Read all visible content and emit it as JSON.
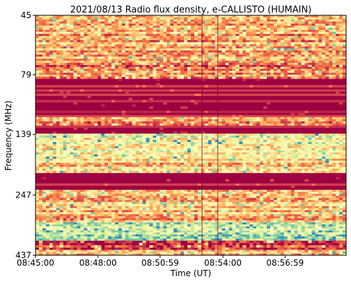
{
  "chart_data": {
    "type": "heatmap",
    "title": "2021/08/13  Radio flux density, e-CALLISTO (HUMAIN)",
    "xlabel": "Time (UT)",
    "ylabel": "Frequency (MHz)",
    "x_ticks": [
      "08:45:00",
      "08:48:00",
      "08:50:59",
      "08:54:00",
      "08:56:59"
    ],
    "y_ticks": [
      "45",
      "79",
      "139",
      "247",
      "437"
    ],
    "x_range": [
      "08:45:00",
      "08:59:55"
    ],
    "y_range": [
      45,
      437
    ],
    "y_axis_inverted": true,
    "grid": false,
    "colormap": [
      "#9e0142",
      "#d53e4f",
      "#f46d43",
      "#fdae61",
      "#fee08b",
      "#ffffbf",
      "#e6f598",
      "#abdda4",
      "#66c2a5",
      "#3288bd"
    ],
    "band_intensity": [
      {
        "freq_start": 45,
        "freq_end": 72,
        "level": 0.3,
        "spiky": true
      },
      {
        "freq_start": 72,
        "freq_end": 82,
        "level": 0.22,
        "spiky": true
      },
      {
        "freq_start": 82,
        "freq_end": 118,
        "level": 0.0,
        "spiky": false
      },
      {
        "freq_start": 118,
        "freq_end": 128,
        "level": 0.28,
        "spiky": true
      },
      {
        "freq_start": 128,
        "freq_end": 138,
        "level": 0.0,
        "spiky": false
      },
      {
        "freq_start": 138,
        "freq_end": 175,
        "level": 0.55,
        "spiky": true
      },
      {
        "freq_start": 175,
        "freq_end": 200,
        "level": 0.38,
        "spiky": true
      },
      {
        "freq_start": 200,
        "freq_end": 235,
        "level": 0.0,
        "spiky": false
      },
      {
        "freq_start": 235,
        "freq_end": 320,
        "level": 0.35,
        "spiky": true
      },
      {
        "freq_start": 320,
        "freq_end": 380,
        "level": 0.72,
        "spiky": true
      },
      {
        "freq_start": 380,
        "freq_end": 415,
        "level": 0.1,
        "spiky": true
      },
      {
        "freq_start": 415,
        "freq_end": 437,
        "level": 0.3,
        "spiky": true
      }
    ],
    "vertical_features": [
      {
        "time": "08:53:00",
        "type": "dark-line"
      },
      {
        "time": "08:53:45",
        "type": "dark-line"
      }
    ]
  }
}
